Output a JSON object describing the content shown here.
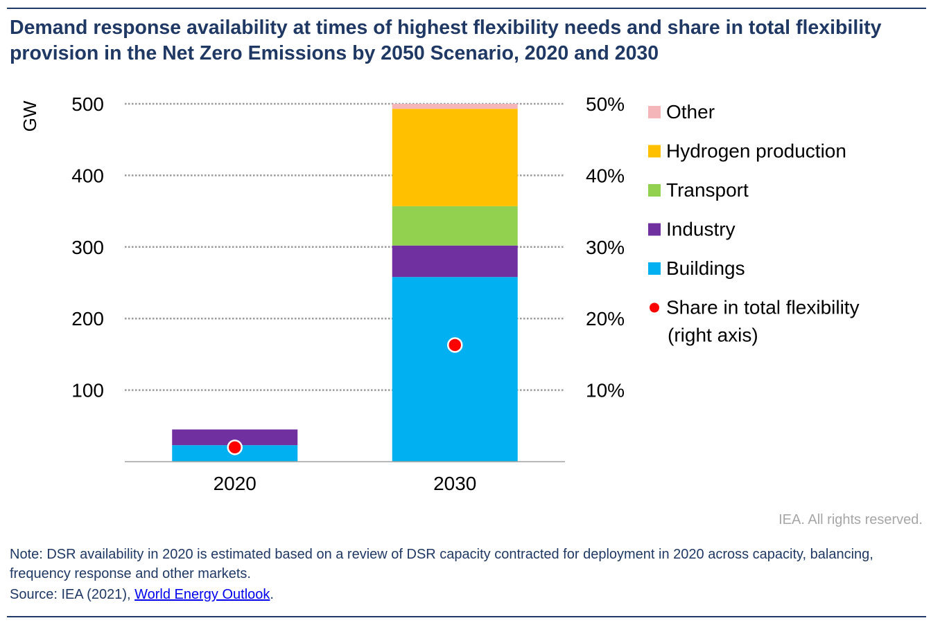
{
  "title": "Demand response availability at times of highest flexibility needs and share in total flexibility provision in the Net Zero Emissions by 2050 Scenario, 2020 and 2030",
  "rights": "IEA. All rights reserved.",
  "note": "Note: DSR availability in 2020 is estimated based on a review of DSR capacity contracted for deployment in 2020 across capacity, balancing, frequency response and other markets.",
  "source": {
    "prefix": "Source: IEA (2021), ",
    "link_text": "World Energy Outlook",
    "suffix": "."
  },
  "chart_data": {
    "type": "bar",
    "stacked": true,
    "categories": [
      "2020",
      "2030"
    ],
    "series": [
      {
        "name": "Buildings",
        "color": "#00b0f0",
        "values": [
          23,
          258
        ]
      },
      {
        "name": "Industry",
        "color": "#7030a0",
        "values": [
          22,
          44
        ]
      },
      {
        "name": "Transport",
        "color": "#92d050",
        "values": [
          0,
          55
        ]
      },
      {
        "name": "Hydrogen production",
        "color": "#ffc000",
        "values": [
          0,
          136
        ]
      },
      {
        "name": "Other",
        "color": "#f4b6b8",
        "values": [
          0,
          7
        ]
      }
    ],
    "secondary_series": {
      "name": "Share in total flexibility (right axis)",
      "type": "scatter",
      "color": "#ff0000",
      "values": [
        2,
        16.3
      ],
      "unit": "%"
    },
    "ylabel": "GW",
    "ylim": [
      0,
      500
    ],
    "yticks": [
      "100",
      "200",
      "300",
      "400",
      "500"
    ],
    "y2lim": [
      0,
      50
    ],
    "y2ticks": [
      "10%",
      "20%",
      "30%",
      "40%",
      "50%"
    ],
    "legend_position": "right",
    "grid": "horizontal dotted"
  }
}
